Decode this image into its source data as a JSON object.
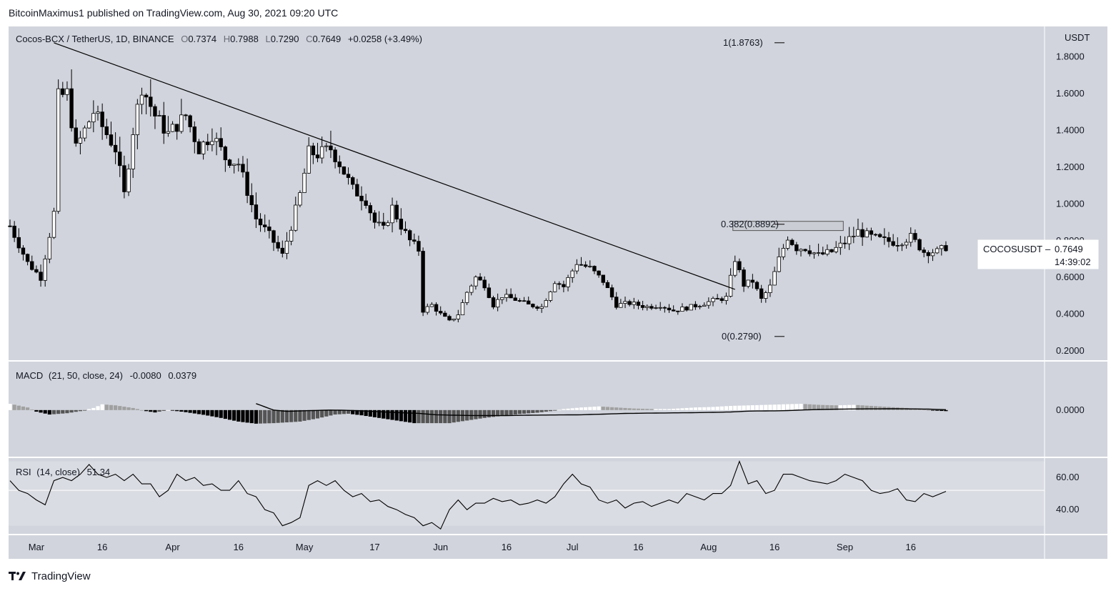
{
  "header": {
    "publish_line": "BitcoinMaximus1 published on TradingView.com, Aug 30, 2021 09:20 UTC"
  },
  "footer": {
    "brand": "TradingView"
  },
  "colors": {
    "pane_bg": "#d1d4dc",
    "rsi_band": "#dadce3",
    "up_fill": "#ffffff",
    "down_fill": "#000000",
    "line": "#000000",
    "hist_white": "#ffffff",
    "hist_light_gray": "#a0a0a0",
    "hist_black": "#000000",
    "hist_dark_gray": "#555555"
  },
  "chart_data": {
    "type": "candlestick",
    "price_pane": {
      "legend": {
        "symbol": "Cocos-BCX / TetherUS, 1D, BINANCE",
        "open_label": "O",
        "open": "0.7374",
        "high_label": "H",
        "high": "0.7988",
        "low_label": "L",
        "low": "0.7290",
        "close_label": "C",
        "close": "0.7649",
        "change": "+0.0258 (+3.49%)"
      },
      "currency": "USDT",
      "y_ticks": [
        "1.8000",
        "1.6000",
        "1.4000",
        "1.2000",
        "1.0000",
        "0.8000",
        "0.6000",
        "0.4000",
        "0.2000"
      ],
      "y_tick_values": [
        1.8,
        1.6,
        1.4,
        1.2,
        1.0,
        0.8,
        0.6,
        0.4,
        0.2
      ],
      "ylim": [
        0.15,
        1.965
      ],
      "price_label": {
        "symbol": "COCOSUSDT",
        "value": "0.7649",
        "countdown": "14:39:02"
      },
      "fib_levels": [
        {
          "label": "1(1.8763)",
          "value": 1.8763
        },
        {
          "label": "0.382(0.8892)",
          "value": 0.8892
        },
        {
          "label": "0(0.2790)",
          "value": 0.279
        }
      ],
      "resistance_box": {
        "low": 0.855,
        "high": 0.905,
        "from_day": 165,
        "to_day": 182
      },
      "trendline": {
        "from": {
          "day": 10,
          "price": 1.876
        },
        "to": {
          "day": 165,
          "price": 0.535
        }
      },
      "candles_approx_note": "approximate daily OHLC read from chart",
      "keypoints": [
        [
          0,
          0.88
        ],
        [
          4,
          0.68
        ],
        [
          7,
          0.6
        ],
        [
          10,
          0.95
        ],
        [
          11,
          1.58
        ],
        [
          13,
          1.6
        ],
        [
          15,
          1.3
        ],
        [
          19,
          1.5
        ],
        [
          24,
          1.3
        ],
        [
          26,
          1.05
        ],
        [
          28,
          1.4
        ],
        [
          30,
          1.64
        ],
        [
          33,
          1.48
        ],
        [
          36,
          1.38
        ],
        [
          40,
          1.48
        ],
        [
          43,
          1.3
        ],
        [
          46,
          1.38
        ],
        [
          49,
          1.25
        ],
        [
          52,
          1.22
        ],
        [
          56,
          0.92
        ],
        [
          59,
          0.83
        ],
        [
          62,
          0.72
        ],
        [
          64,
          0.88
        ],
        [
          66,
          1.05
        ],
        [
          68,
          1.28
        ],
        [
          70,
          1.27
        ],
        [
          73,
          1.3
        ],
        [
          75,
          1.22
        ],
        [
          78,
          1.08
        ],
        [
          81,
          1.02
        ],
        [
          83,
          0.9
        ],
        [
          85,
          0.86
        ],
        [
          87,
          0.98
        ],
        [
          89,
          0.88
        ],
        [
          91,
          0.8
        ],
        [
          93,
          0.75
        ],
        [
          94,
          0.42
        ],
        [
          96,
          0.45
        ],
        [
          98,
          0.4
        ],
        [
          100,
          0.36
        ],
        [
          102,
          0.4
        ],
        [
          104,
          0.52
        ],
        [
          106,
          0.6
        ],
        [
          108,
          0.56
        ],
        [
          110,
          0.45
        ],
        [
          112,
          0.5
        ],
        [
          115,
          0.48
        ],
        [
          118,
          0.45
        ],
        [
          121,
          0.44
        ],
        [
          124,
          0.58
        ],
        [
          126,
          0.55
        ],
        [
          129,
          0.68
        ],
        [
          132,
          0.65
        ],
        [
          135,
          0.58
        ],
        [
          138,
          0.45
        ],
        [
          141,
          0.46
        ],
        [
          145,
          0.44
        ],
        [
          148,
          0.45
        ],
        [
          151,
          0.42
        ],
        [
          155,
          0.44
        ],
        [
          158,
          0.46
        ],
        [
          161,
          0.48
        ],
        [
          163,
          0.49
        ],
        [
          165,
          0.7
        ],
        [
          167,
          0.56
        ],
        [
          169,
          0.58
        ],
        [
          171,
          0.48
        ],
        [
          173,
          0.55
        ],
        [
          175,
          0.7
        ],
        [
          177,
          0.82
        ],
        [
          179,
          0.76
        ],
        [
          181,
          0.76
        ],
        [
          184,
          0.72
        ],
        [
          187,
          0.74
        ],
        [
          190,
          0.79
        ],
        [
          193,
          0.85
        ],
        [
          196,
          0.82
        ],
        [
          199,
          0.8
        ],
        [
          202,
          0.79
        ],
        [
          205,
          0.82
        ],
        [
          208,
          0.74
        ],
        [
          211,
          0.74
        ],
        [
          213,
          0.7649
        ]
      ]
    },
    "macd_pane": {
      "legend": {
        "title": "MACD",
        "params": "(21, 50, close, 24)",
        "v1": "-0.0080",
        "v2": "0.0379"
      },
      "y_ticks": [
        "0.0000"
      ],
      "ylim": [
        -0.25,
        0.25
      ],
      "macd_keypoints": [
        [
          0,
          0.12
        ],
        [
          56,
          0.62
        ],
        [
          60,
          0.0
        ],
        [
          63,
          -0.12
        ],
        [
          66,
          -0.08
        ],
        [
          70,
          -0.03
        ],
        [
          73,
          -0.0
        ],
        [
          76,
          -0.02
        ],
        [
          80,
          -0.07
        ],
        [
          85,
          -0.18
        ],
        [
          90,
          -0.27
        ],
        [
          93,
          -0.31
        ],
        [
          97,
          -0.45
        ],
        [
          102,
          -0.5
        ],
        [
          106,
          -0.52
        ],
        [
          112,
          -0.53
        ],
        [
          120,
          -0.48
        ],
        [
          130,
          -0.45
        ],
        [
          140,
          -0.32
        ],
        [
          148,
          -0.28
        ],
        [
          155,
          -0.25
        ],
        [
          160,
          -0.22
        ],
        [
          164,
          -0.18
        ],
        [
          168,
          -0.1
        ],
        [
          172,
          -0.08
        ],
        [
          176,
          -0.06
        ],
        [
          180,
          0.0
        ],
        [
          184,
          0.06
        ],
        [
          190,
          0.1
        ],
        [
          196,
          0.12
        ],
        [
          202,
          0.125
        ],
        [
          208,
          0.1
        ],
        [
          213,
          0.0379
        ]
      ],
      "hist_keypoints": [
        [
          0,
          0.12
        ],
        [
          4,
          0.05
        ],
        [
          6,
          -0.03
        ],
        [
          9,
          -0.085
        ],
        [
          13,
          -0.06
        ],
        [
          16,
          -0.02
        ],
        [
          19,
          0.04
        ],
        [
          21,
          0.11
        ],
        [
          24,
          0.09
        ],
        [
          28,
          0.04
        ],
        [
          31,
          -0.02
        ],
        [
          33,
          -0.045
        ],
        [
          36,
          0.0
        ],
        [
          40,
          -0.04
        ],
        [
          44,
          -0.09
        ],
        [
          48,
          -0.15
        ],
        [
          52,
          -0.22
        ],
        [
          56,
          -0.26
        ],
        [
          60,
          -0.25
        ],
        [
          64,
          -0.23
        ],
        [
          66,
          -0.22
        ],
        [
          70,
          -0.16
        ],
        [
          74,
          -0.085
        ],
        [
          77,
          -0.07
        ],
        [
          80,
          -0.1
        ],
        [
          84,
          -0.15
        ],
        [
          88,
          -0.2
        ],
        [
          92,
          -0.25
        ],
        [
          96,
          -0.25
        ],
        [
          100,
          -0.25
        ],
        [
          104,
          -0.2
        ],
        [
          108,
          -0.15
        ],
        [
          112,
          -0.11
        ],
        [
          116,
          -0.075
        ],
        [
          120,
          -0.05
        ],
        [
          124,
          -0.01
        ],
        [
          126,
          0.02
        ],
        [
          130,
          0.05
        ],
        [
          134,
          0.07
        ],
        [
          138,
          0.05
        ],
        [
          142,
          0.03
        ],
        [
          146,
          0.02
        ],
        [
          150,
          0.02
        ],
        [
          156,
          0.05
        ],
        [
          160,
          0.06
        ],
        [
          164,
          0.08
        ],
        [
          168,
          0.09
        ],
        [
          172,
          0.1
        ],
        [
          176,
          0.11
        ],
        [
          180,
          0.12
        ],
        [
          184,
          0.1
        ],
        [
          188,
          0.09
        ],
        [
          192,
          0.1
        ],
        [
          196,
          0.08
        ],
        [
          200,
          0.06
        ],
        [
          204,
          0.04
        ],
        [
          208,
          0.01
        ],
        [
          210,
          -0.01
        ],
        [
          213,
          -0.02
        ]
      ]
    },
    "rsi_pane": {
      "legend": {
        "title": "RSI",
        "params": "(14, close)",
        "value": "51.34"
      },
      "y_ticks": [
        "60.00",
        "40.00"
      ],
      "y_tick_values": [
        60,
        40
      ],
      "ylim": [
        25,
        72
      ],
      "band": [
        30,
        70
      ],
      "midline": 52,
      "rsi_keypoints": [
        [
          0,
          58
        ],
        [
          2,
          52
        ],
        [
          4,
          50
        ],
        [
          6,
          46
        ],
        [
          8,
          43
        ],
        [
          10,
          58
        ],
        [
          12,
          60
        ],
        [
          14,
          58
        ],
        [
          16,
          62
        ],
        [
          18,
          68
        ],
        [
          20,
          62
        ],
        [
          22,
          60
        ],
        [
          24,
          62
        ],
        [
          26,
          58
        ],
        [
          28,
          62
        ],
        [
          30,
          56
        ],
        [
          32,
          56
        ],
        [
          34,
          48
        ],
        [
          36,
          52
        ],
        [
          38,
          62
        ],
        [
          40,
          58
        ],
        [
          42,
          60
        ],
        [
          44,
          55
        ],
        [
          46,
          56
        ],
        [
          48,
          52
        ],
        [
          50,
          52
        ],
        [
          52,
          58
        ],
        [
          54,
          50
        ],
        [
          56,
          48
        ],
        [
          58,
          40
        ],
        [
          60,
          38
        ],
        [
          62,
          30
        ],
        [
          64,
          32
        ],
        [
          66,
          35
        ],
        [
          68,
          55
        ],
        [
          70,
          58
        ],
        [
          72,
          55
        ],
        [
          74,
          58
        ],
        [
          76,
          52
        ],
        [
          78,
          48
        ],
        [
          80,
          50
        ],
        [
          82,
          45
        ],
        [
          84,
          46
        ],
        [
          86,
          42
        ],
        [
          88,
          40
        ],
        [
          90,
          37
        ],
        [
          92,
          35
        ],
        [
          94,
          30
        ],
        [
          96,
          32
        ],
        [
          98,
          28
        ],
        [
          100,
          40
        ],
        [
          102,
          46
        ],
        [
          104,
          40
        ],
        [
          106,
          44
        ],
        [
          108,
          44
        ],
        [
          110,
          47
        ],
        [
          112,
          45
        ],
        [
          114,
          46
        ],
        [
          116,
          43
        ],
        [
          118,
          44
        ],
        [
          120,
          46
        ],
        [
          122,
          44
        ],
        [
          124,
          48
        ],
        [
          126,
          56
        ],
        [
          128,
          62
        ],
        [
          130,
          56
        ],
        [
          132,
          54
        ],
        [
          134,
          46
        ],
        [
          136,
          44
        ],
        [
          138,
          46
        ],
        [
          140,
          41
        ],
        [
          142,
          44
        ],
        [
          144,
          45
        ],
        [
          146,
          42
        ],
        [
          148,
          44
        ],
        [
          150,
          46
        ],
        [
          152,
          44
        ],
        [
          154,
          50
        ],
        [
          156,
          48
        ],
        [
          158,
          46
        ],
        [
          160,
          50
        ],
        [
          162,
          50
        ],
        [
          164,
          55
        ],
        [
          166,
          70
        ],
        [
          168,
          56
        ],
        [
          170,
          58
        ],
        [
          172,
          50
        ],
        [
          174,
          52
        ],
        [
          176,
          62
        ],
        [
          178,
          62
        ],
        [
          180,
          60
        ],
        [
          182,
          58
        ],
        [
          184,
          57
        ],
        [
          186,
          56
        ],
        [
          188,
          58
        ],
        [
          190,
          62
        ],
        [
          192,
          60
        ],
        [
          194,
          58
        ],
        [
          196,
          52
        ],
        [
          198,
          50
        ],
        [
          200,
          51
        ],
        [
          202,
          53
        ],
        [
          204,
          46
        ],
        [
          206,
          45
        ],
        [
          208,
          50
        ],
        [
          210,
          48
        ],
        [
          213,
          51.34
        ]
      ]
    },
    "x_axis": {
      "labels": [
        {
          "text": "Mar",
          "day": 6
        },
        {
          "text": "16",
          "day": 21
        },
        {
          "text": "Apr",
          "day": 37
        },
        {
          "text": "16",
          "day": 52
        },
        {
          "text": "May",
          "day": 67
        },
        {
          "text": "17",
          "day": 83
        },
        {
          "text": "Jun",
          "day": 98
        },
        {
          "text": "16",
          "day": 113
        },
        {
          "text": "Jul",
          "day": 128
        },
        {
          "text": "16",
          "day": 143
        },
        {
          "text": "Aug",
          "day": 159
        },
        {
          "text": "16",
          "day": 174
        },
        {
          "text": "Sep",
          "day": 190
        },
        {
          "text": "16",
          "day": 205
        }
      ]
    }
  }
}
